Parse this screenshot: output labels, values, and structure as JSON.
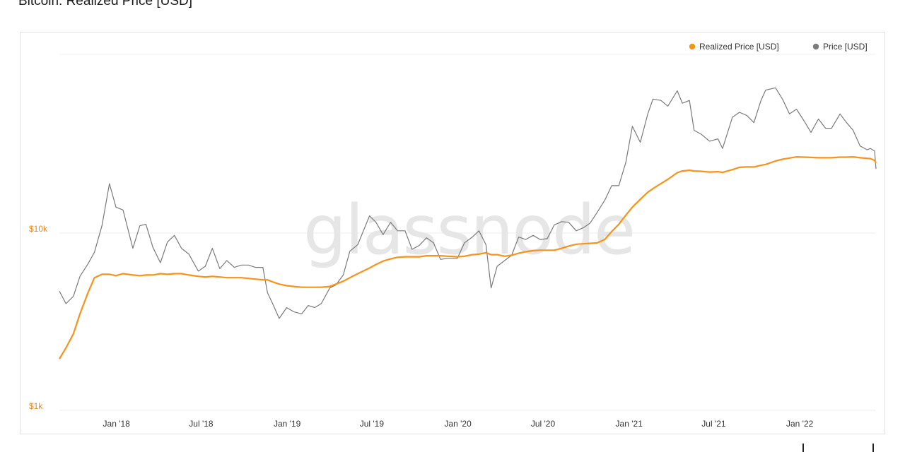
{
  "title": "Bitcoin: Realized Price [USD]",
  "watermark": "glassnode",
  "colors": {
    "realized": "#F7931A",
    "price": "#7a7a7a",
    "ytick": "#e58a1f"
  },
  "chart_data": {
    "type": "line",
    "yscale": "log",
    "ylim": [
      1000,
      60000
    ],
    "yticks": [
      {
        "value": 1000,
        "label": "$1k"
      },
      {
        "value": 10000,
        "label": "$10k"
      }
    ],
    "xticks": [
      "Jan '18",
      "Jul '18",
      "Jan '19",
      "Jul '19",
      "Jan '20",
      "Jul '20",
      "Jan '21",
      "Jul '21",
      "Jan '22"
    ],
    "legend": {
      "position": "top-right",
      "entries": [
        "Realized Price [USD]",
        "Price [USD]"
      ]
    },
    "x": [
      "2017-09-01",
      "2017-09-15",
      "2017-10-01",
      "2017-10-15",
      "2017-11-01",
      "2017-11-15",
      "2017-12-01",
      "2017-12-17",
      "2017-12-31",
      "2018-01-15",
      "2018-02-05",
      "2018-02-20",
      "2018-03-05",
      "2018-03-20",
      "2018-04-05",
      "2018-04-20",
      "2018-05-05",
      "2018-05-20",
      "2018-06-05",
      "2018-06-25",
      "2018-07-10",
      "2018-07-25",
      "2018-08-10",
      "2018-08-25",
      "2018-09-10",
      "2018-09-25",
      "2018-10-10",
      "2018-10-25",
      "2018-11-10",
      "2018-11-20",
      "2018-12-01",
      "2018-12-15",
      "2018-12-31",
      "2019-01-15",
      "2019-02-01",
      "2019-02-15",
      "2019-03-01",
      "2019-03-15",
      "2019-04-02",
      "2019-04-15",
      "2019-05-01",
      "2019-05-15",
      "2019-06-01",
      "2019-06-26",
      "2019-07-10",
      "2019-07-25",
      "2019-08-10",
      "2019-08-25",
      "2019-09-10",
      "2019-09-25",
      "2019-10-10",
      "2019-10-26",
      "2019-11-10",
      "2019-11-25",
      "2019-12-10",
      "2019-12-31",
      "2020-01-15",
      "2020-02-01",
      "2020-02-15",
      "2020-03-01",
      "2020-03-12",
      "2020-03-25",
      "2020-04-10",
      "2020-04-25",
      "2020-05-10",
      "2020-05-25",
      "2020-06-10",
      "2020-06-25",
      "2020-07-10",
      "2020-07-25",
      "2020-08-10",
      "2020-08-25",
      "2020-09-10",
      "2020-09-25",
      "2020-10-10",
      "2020-10-25",
      "2020-11-10",
      "2020-11-25",
      "2020-12-10",
      "2020-12-25",
      "2021-01-08",
      "2021-01-25",
      "2021-02-10",
      "2021-02-21",
      "2021-03-10",
      "2021-03-25",
      "2021-04-14",
      "2021-04-25",
      "2021-05-10",
      "2021-05-20",
      "2021-06-05",
      "2021-06-22",
      "2021-07-10",
      "2021-07-20",
      "2021-08-10",
      "2021-08-25",
      "2021-09-10",
      "2021-09-25",
      "2021-10-10",
      "2021-10-20",
      "2021-11-10",
      "2021-11-25",
      "2021-12-10",
      "2021-12-25",
      "2022-01-10",
      "2022-01-25",
      "2022-02-10",
      "2022-02-25",
      "2022-03-10",
      "2022-03-28",
      "2022-04-10",
      "2022-04-25",
      "2022-05-10",
      "2022-05-25",
      "2022-06-01",
      "2022-06-10",
      "2022-06-13"
    ],
    "series": [
      {
        "name": "Price [USD]",
        "values": [
          4700,
          4000,
          4400,
          5700,
          6700,
          7800,
          11000,
          19000,
          14000,
          13500,
          8200,
          11000,
          11200,
          8300,
          6800,
          8900,
          9700,
          8200,
          7600,
          6100,
          6500,
          8200,
          6300,
          7000,
          6400,
          6600,
          6600,
          6400,
          6400,
          4600,
          4000,
          3300,
          3800,
          3600,
          3500,
          3900,
          3800,
          4000,
          4900,
          5100,
          5800,
          7900,
          8600,
          12500,
          11500,
          9800,
          11500,
          10300,
          10300,
          8100,
          8500,
          9400,
          8800,
          7100,
          7200,
          7200,
          8800,
          9500,
          10300,
          8600,
          4900,
          6500,
          7000,
          7500,
          9500,
          9200,
          9700,
          9200,
          9300,
          11100,
          11600,
          11500,
          10300,
          10700,
          11400,
          13100,
          15300,
          18500,
          18500,
          25000,
          40000,
          32500,
          47000,
          57000,
          56000,
          52000,
          63500,
          54000,
          56000,
          38000,
          36000,
          33000,
          34000,
          30000,
          45000,
          48000,
          46000,
          42000,
          56000,
          64000,
          66000,
          57000,
          47000,
          50000,
          43000,
          37000,
          44000,
          39000,
          39000,
          47000,
          42300,
          38000,
          31000,
          29500,
          30000,
          29000,
          23000
        ]
      },
      {
        "name": "Realized Price [USD]",
        "values": [
          1950,
          2250,
          2700,
          3500,
          4600,
          5600,
          5850,
          5850,
          5750,
          5900,
          5800,
          5750,
          5800,
          5800,
          5900,
          5850,
          5900,
          5900,
          5800,
          5700,
          5650,
          5700,
          5650,
          5600,
          5600,
          5600,
          5550,
          5500,
          5450,
          5450,
          5300,
          5150,
          5050,
          5000,
          4950,
          4950,
          4950,
          4950,
          5000,
          5150,
          5350,
          5600,
          5900,
          6350,
          6650,
          6950,
          7150,
          7300,
          7350,
          7350,
          7350,
          7450,
          7450,
          7450,
          7400,
          7350,
          7400,
          7550,
          7600,
          7750,
          7550,
          7550,
          7400,
          7500,
          7700,
          7850,
          7950,
          8000,
          8000,
          8000,
          8200,
          8450,
          8650,
          8700,
          8750,
          8800,
          9200,
          10200,
          11200,
          12600,
          14000,
          15500,
          17000,
          17800,
          19000,
          20100,
          21900,
          22400,
          22600,
          22400,
          22300,
          22100,
          22200,
          22000,
          22800,
          23500,
          23600,
          23600,
          24100,
          24400,
          25500,
          26100,
          26500,
          26900,
          26800,
          26700,
          26600,
          26600,
          26600,
          26800,
          26800,
          26900,
          26600,
          26400,
          26300,
          25700,
          24800
        ]
      }
    ]
  }
}
